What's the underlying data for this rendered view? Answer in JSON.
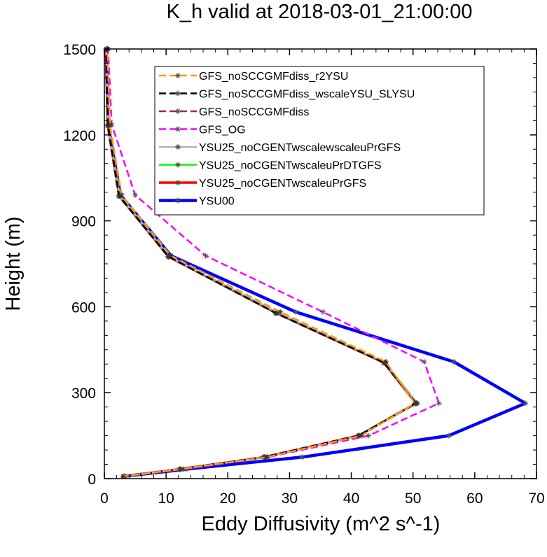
{
  "chart_data": {
    "type": "line",
    "title": "K_h valid at 2018-03-01_21:00:00",
    "xlabel": "Eddy Diffusivity (m^2 s^-1)",
    "ylabel": "Height (m)",
    "xlim": [
      0,
      70
    ],
    "ylim": [
      0,
      1500
    ],
    "x_ticks": [
      0,
      10,
      20,
      30,
      40,
      50,
      60,
      70
    ],
    "y_ticks": [
      0,
      300,
      600,
      900,
      1200,
      1500
    ],
    "x_tick_labels": [
      "0",
      "10",
      "20",
      "30",
      "40",
      "50",
      "60",
      "70"
    ],
    "y_tick_labels": [
      "0",
      "300",
      "600",
      "900",
      "1200",
      "1500"
    ],
    "legend_position": "top-right",
    "grid": false,
    "series": [
      {
        "name": "GFS_noSCCGMFdiss_r2YSU",
        "color": "#ff9900",
        "dash": "dashed",
        "marker": "asterisk",
        "points": [
          [
            3.0,
            8
          ],
          [
            12.3,
            33
          ],
          [
            26.3,
            75
          ],
          [
            41.6,
            150
          ],
          [
            50.3,
            263
          ],
          [
            45.6,
            408
          ],
          [
            28.5,
            582
          ],
          [
            10.8,
            778
          ],
          [
            2.8,
            990
          ],
          [
            0.9,
            1235
          ],
          [
            0.5,
            1500
          ]
        ]
      },
      {
        "name": "GFS_noSCCGMFdiss_wscaleYSU_SLYSU",
        "color": "#000000",
        "dash": "dashed",
        "marker": "asterisk",
        "points": [
          [
            3.2,
            8
          ],
          [
            12.2,
            33
          ],
          [
            25.9,
            75
          ],
          [
            41.2,
            150
          ],
          [
            50.5,
            263
          ],
          [
            45.3,
            405
          ],
          [
            27.8,
            578
          ],
          [
            10.4,
            775
          ],
          [
            2.4,
            987
          ],
          [
            0.6,
            1232
          ],
          [
            0.3,
            1500
          ]
        ]
      },
      {
        "name": "GFS_noSCCGMFdiss",
        "color": "#a52a2a",
        "dash": "dashed",
        "marker": "asterisk",
        "points": [
          [
            3.2,
            8
          ],
          [
            12.2,
            33
          ],
          [
            25.8,
            75
          ],
          [
            41.1,
            150
          ],
          [
            50.4,
            263
          ],
          [
            45.2,
            405
          ],
          [
            27.7,
            578
          ],
          [
            10.3,
            775
          ],
          [
            2.3,
            987
          ],
          [
            0.5,
            1232
          ],
          [
            0.3,
            1500
          ]
        ]
      },
      {
        "name": "GFS_OG",
        "color": "#ff00ff",
        "dash": "dashed",
        "marker": "asterisk",
        "points": [
          [
            3.2,
            8
          ],
          [
            12.8,
            33
          ],
          [
            26.5,
            75
          ],
          [
            42.8,
            150
          ],
          [
            54.2,
            263
          ],
          [
            51.8,
            408
          ],
          [
            35.4,
            582
          ],
          [
            16.4,
            778
          ],
          [
            5.0,
            990
          ],
          [
            1.2,
            1235
          ],
          [
            0.6,
            1500
          ]
        ]
      },
      {
        "name": "YSU25_noCGENTwscalewscaleuPrGFS",
        "color": "#b3b3b3",
        "dash": "solid",
        "marker": "asterisk",
        "points": [
          [
            3.2,
            8
          ],
          [
            12.3,
            33
          ],
          [
            26.0,
            75
          ],
          [
            41.3,
            150
          ],
          [
            50.7,
            263
          ],
          [
            45.5,
            405
          ],
          [
            28.1,
            580
          ],
          [
            10.5,
            776
          ],
          [
            2.5,
            988
          ],
          [
            0.6,
            1233
          ],
          [
            0.3,
            1500
          ]
        ]
      },
      {
        "name": "YSU25_noCGENTwscaleuPrDTGFS",
        "color": "#00ff00",
        "dash": "solid",
        "marker": "asterisk",
        "points": [
          [
            3.2,
            8
          ],
          [
            12.2,
            33
          ],
          [
            25.9,
            75
          ],
          [
            41.2,
            150
          ],
          [
            50.6,
            263
          ],
          [
            45.4,
            405
          ],
          [
            28.0,
            579
          ],
          [
            10.4,
            775
          ],
          [
            2.4,
            987
          ],
          [
            0.6,
            1232
          ],
          [
            0.3,
            1500
          ]
        ]
      },
      {
        "name": "YSU25_noCGENTwscaleuPrGFS",
        "color": "#ff0000",
        "dash": "solid",
        "marker": "asterisk",
        "points": [
          [
            3.2,
            8
          ],
          [
            12.2,
            33
          ],
          [
            25.9,
            75
          ],
          [
            41.2,
            150
          ],
          [
            50.5,
            263
          ],
          [
            45.3,
            405
          ],
          [
            27.9,
            578
          ],
          [
            10.4,
            775
          ],
          [
            2.4,
            987
          ],
          [
            0.6,
            1232
          ],
          [
            0.3,
            1500
          ]
        ]
      },
      {
        "name": "YSU00",
        "color": "#0000ff",
        "dash": "solid",
        "marker": "asterisk",
        "points": [
          [
            3.2,
            8
          ],
          [
            13.2,
            33
          ],
          [
            32.0,
            75
          ],
          [
            55.8,
            150
          ],
          [
            68.2,
            263
          ],
          [
            56.6,
            408
          ],
          [
            31.0,
            582
          ],
          [
            10.8,
            778
          ],
          [
            2.6,
            990
          ],
          [
            0.6,
            1235
          ],
          [
            0.3,
            1500
          ]
        ]
      }
    ]
  }
}
